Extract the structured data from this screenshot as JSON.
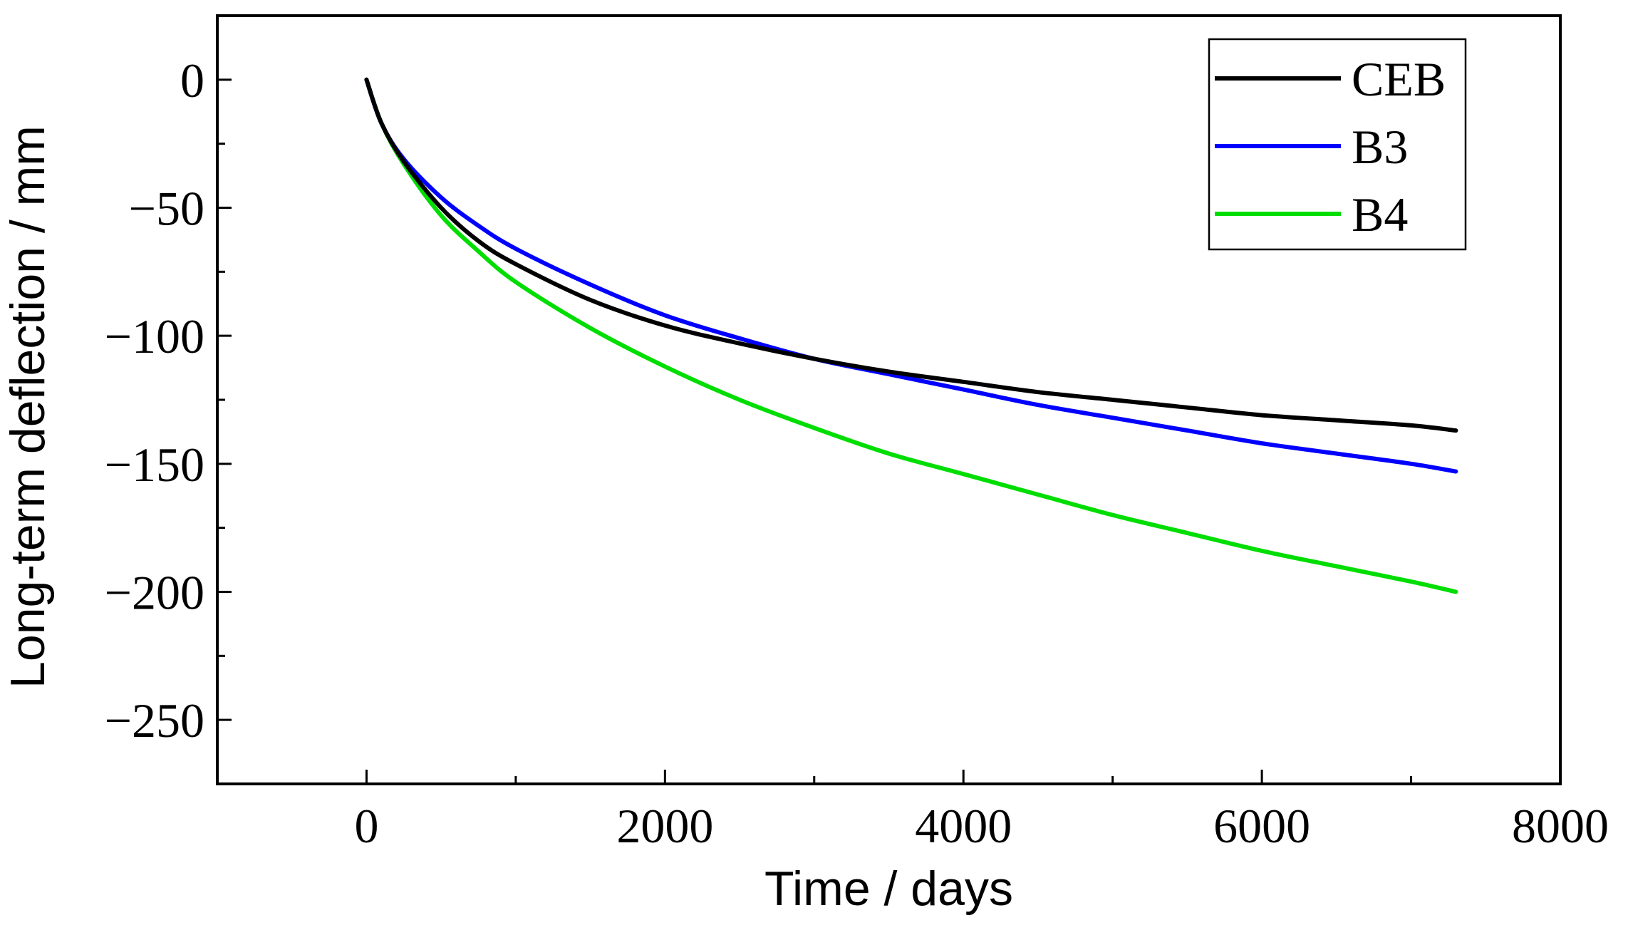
{
  "chart_data": {
    "type": "line",
    "title": "",
    "xlabel": "Time / days",
    "ylabel": "Long-term deflection / mm",
    "xlim": [
      -1000,
      8000
    ],
    "ylim": [
      -275,
      25
    ],
    "x_ticks": [
      0,
      2000,
      4000,
      6000,
      8000
    ],
    "x_tick_labels": [
      "0",
      "2000",
      "4000",
      "6000",
      "8000"
    ],
    "y_ticks": [
      0,
      -50,
      -100,
      -150,
      -200,
      -250
    ],
    "y_tick_labels": [
      "0",
      "−50",
      "−100",
      "−150",
      "−200",
      "−250"
    ],
    "grid": false,
    "legend_position": "top-right",
    "series": [
      {
        "name": "CEB",
        "color": "#000000",
        "x": [
          0,
          100,
          250,
          500,
          750,
          1000,
          1500,
          2000,
          2500,
          3000,
          3500,
          4000,
          4500,
          5000,
          5500,
          6000,
          6500,
          7000,
          7300
        ],
        "y": [
          0,
          -17,
          -32,
          -50,
          -63,
          -72,
          -86,
          -96,
          -103,
          -109,
          -114,
          -118,
          -122,
          -125,
          -128,
          -131,
          -133,
          -135,
          -137
        ]
      },
      {
        "name": "B3",
        "color": "#0000ff",
        "x": [
          0,
          100,
          250,
          500,
          750,
          1000,
          1500,
          2000,
          2500,
          3000,
          3500,
          4000,
          4500,
          5000,
          5500,
          6000,
          6500,
          7000,
          7300
        ],
        "y": [
          0,
          -17,
          -31,
          -46,
          -57,
          -66,
          -80,
          -92,
          -101,
          -109,
          -115,
          -121,
          -127,
          -132,
          -137,
          -142,
          -146,
          -150,
          -153
        ]
      },
      {
        "name": "B4",
        "color": "#00dd00",
        "x": [
          0,
          100,
          250,
          500,
          750,
          1000,
          1500,
          2000,
          2500,
          3000,
          3500,
          4000,
          4500,
          5000,
          5500,
          6000,
          6500,
          7000,
          7300
        ],
        "y": [
          0,
          -17,
          -33,
          -53,
          -67,
          -79,
          -97,
          -112,
          -125,
          -136,
          -146,
          -154,
          -162,
          -170,
          -177,
          -184,
          -190,
          -196,
          -200
        ]
      }
    ]
  }
}
